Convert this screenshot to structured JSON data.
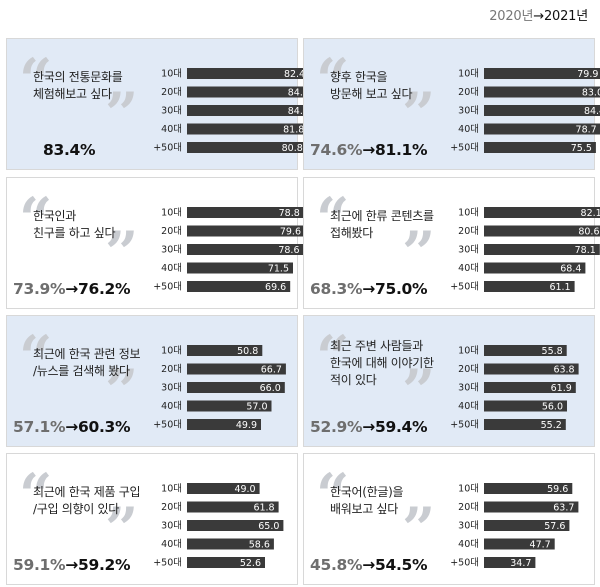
{
  "legend": {
    "year_old": "2020년",
    "arrow": "→",
    "year_new": "2021년"
  },
  "scale_max": 85,
  "chart_data": [
    {
      "type": "bar",
      "title": "한국의 전통문화를\n체험해보고 싶다",
      "style": "blue",
      "avg_old": "",
      "avg_new": "83.4%",
      "categories": [
        "10대",
        "20대",
        "30대",
        "40대",
        "+50대"
      ],
      "values": [
        82.4,
        84.9,
        84.9,
        81.8,
        80.8
      ],
      "labels": [
        "82.4",
        "84.9",
        "84.9",
        "81.8",
        "80.8"
      ]
    },
    {
      "type": "bar",
      "title": "향후 한국을\n방문해 보고 싶다",
      "style": "blue",
      "avg_old": "74.6%",
      "avg_new": "81.1%",
      "categories": [
        "10대",
        "20대",
        "30대",
        "40대",
        "+50대"
      ],
      "values": [
        79.9,
        83.0,
        84.4,
        78.7,
        75.5
      ],
      "labels": [
        "79.9",
        "83.0",
        "84.4",
        "78.7",
        "75.5"
      ]
    },
    {
      "type": "bar",
      "title": "한국인과\n친구를 하고 싶다",
      "style": "white",
      "avg_old": "73.9%",
      "avg_new": "76.2%",
      "categories": [
        "10대",
        "20대",
        "30대",
        "40대",
        "+50대"
      ],
      "values": [
        78.8,
        79.6,
        78.6,
        71.5,
        69.6
      ],
      "labels": [
        "78.8",
        "79.6",
        "78.6",
        "71.5",
        "69.6"
      ]
    },
    {
      "type": "bar",
      "title": "최근에 한류 콘텐츠를\n접해봤다",
      "style": "white",
      "avg_old": "68.3%",
      "avg_new": "75.0%",
      "categories": [
        "10대",
        "20대",
        "30대",
        "40대",
        "+50대"
      ],
      "values": [
        82.1,
        80.6,
        78.1,
        68.4,
        61.1
      ],
      "labels": [
        "82.1",
        "80.6",
        "78.1",
        "68.4",
        "61.1"
      ]
    },
    {
      "type": "bar",
      "title": "최근에 한국 관련 정보\n/뉴스를 검색해 봤다",
      "style": "blue",
      "avg_old": "57.1%",
      "avg_new": "60.3%",
      "categories": [
        "10대",
        "20대",
        "30대",
        "40대",
        "+50대"
      ],
      "values": [
        50.8,
        66.7,
        66.0,
        57.0,
        49.9
      ],
      "labels": [
        "50.8",
        "66.7",
        "66.0",
        "57.0",
        "49.9"
      ]
    },
    {
      "type": "bar",
      "title": "최근 주변 사람들과\n한국에 대해 이야기한\n적이 있다",
      "style": "blue",
      "avg_old": "52.9%",
      "avg_new": "59.4%",
      "categories": [
        "10대",
        "20대",
        "30대",
        "40대",
        "+50대"
      ],
      "values": [
        55.8,
        63.8,
        61.9,
        56.0,
        55.2
      ],
      "labels": [
        "55.8",
        "63.8",
        "61.9",
        "56.0",
        "55.2"
      ]
    },
    {
      "type": "bar",
      "title": "최근에 한국 제품 구입\n/구입 의향이 있다",
      "style": "white",
      "avg_old": "59.1%",
      "avg_new": "59.2%",
      "categories": [
        "10대",
        "20대",
        "30대",
        "40대",
        "+50대"
      ],
      "values": [
        49.0,
        61.8,
        65.0,
        58.6,
        52.6
      ],
      "labels": [
        "49.0",
        "61.8",
        "65.0",
        "58.6",
        "52.6"
      ]
    },
    {
      "type": "bar",
      "title": "한국어(한글)을\n배워보고 싶다",
      "style": "white",
      "avg_old": "45.8%",
      "avg_new": "54.5%",
      "categories": [
        "10대",
        "20대",
        "30대",
        "40대",
        "+50대"
      ],
      "values": [
        59.6,
        63.7,
        57.6,
        47.7,
        34.7
      ],
      "labels": [
        "59.6",
        "63.7",
        "57.6",
        "47.7",
        "34.7"
      ]
    }
  ],
  "colors": {
    "bar": "#3a3a3a",
    "blue_bg": "#e1eaf6",
    "white_bg": "#ffffff",
    "quote": "#c9ccd1"
  },
  "icons": {
    "open_quote": "open-quote-icon",
    "close_quote": "close-quote-icon"
  }
}
